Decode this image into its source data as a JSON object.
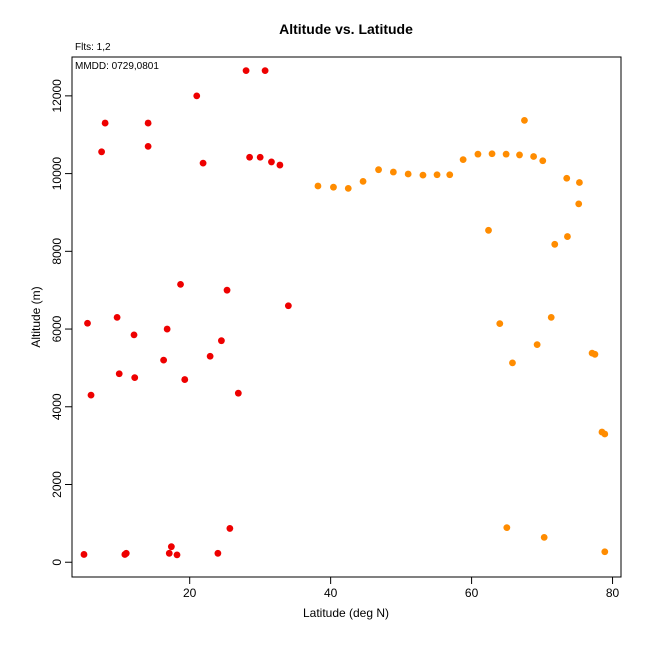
{
  "chart_data": {
    "type": "scatter",
    "title": "Altitude vs. Latitude",
    "xlabel": "Latitude (deg N)",
    "ylabel": "Altitude (m)",
    "xlim": [
      3.3,
      81.2
    ],
    "ylim": [
      -380,
      13000
    ],
    "x_ticks": [
      20,
      40,
      60,
      80
    ],
    "y_ticks": [
      0,
      2000,
      4000,
      6000,
      8000,
      10000,
      12000
    ],
    "grid": false,
    "flights_note": "Flts: 1,2",
    "mmdd_note": "MMDD: 0729,0801",
    "series": [
      {
        "color": "#ee0000",
        "points": [
          [
            5.0,
            200
          ],
          [
            5.5,
            6150
          ],
          [
            6.0,
            4300
          ],
          [
            7.5,
            10560
          ],
          [
            8.0,
            11300
          ],
          [
            9.7,
            6300
          ],
          [
            10.0,
            4850
          ],
          [
            10.8,
            200
          ],
          [
            11.0,
            230
          ],
          [
            12.1,
            5850
          ],
          [
            12.2,
            4750
          ],
          [
            14.1,
            11300
          ],
          [
            14.1,
            10700
          ],
          [
            16.3,
            5200
          ],
          [
            16.8,
            6000
          ],
          [
            17.1,
            230
          ],
          [
            17.4,
            400
          ],
          [
            18.2,
            190
          ],
          [
            18.7,
            7150
          ],
          [
            19.3,
            4700
          ],
          [
            21.0,
            12000
          ],
          [
            21.9,
            10270
          ],
          [
            22.9,
            5300
          ],
          [
            24.0,
            230
          ],
          [
            24.5,
            5700
          ],
          [
            25.3,
            7000
          ],
          [
            25.7,
            870
          ],
          [
            26.9,
            4350
          ],
          [
            28.0,
            12650
          ],
          [
            28.5,
            10420
          ],
          [
            30.0,
            10420
          ],
          [
            30.7,
            12650
          ],
          [
            31.6,
            10300
          ],
          [
            32.8,
            10220
          ],
          [
            34.0,
            6600
          ]
        ]
      },
      {
        "color": "#ff8c00",
        "points": [
          [
            38.2,
            9680
          ],
          [
            40.4,
            9650
          ],
          [
            42.5,
            9620
          ],
          [
            44.6,
            9800
          ],
          [
            46.8,
            10100
          ],
          [
            48.9,
            10040
          ],
          [
            51.0,
            9990
          ],
          [
            53.1,
            9960
          ],
          [
            55.1,
            9970
          ],
          [
            56.9,
            9970
          ],
          [
            58.8,
            10360
          ],
          [
            60.9,
            10500
          ],
          [
            62.4,
            8540
          ],
          [
            62.9,
            10510
          ],
          [
            64.0,
            6140
          ],
          [
            64.9,
            10500
          ],
          [
            65.0,
            890
          ],
          [
            65.8,
            5130
          ],
          [
            66.8,
            10480
          ],
          [
            67.5,
            11370
          ],
          [
            68.8,
            10440
          ],
          [
            69.3,
            5600
          ],
          [
            70.1,
            10330
          ],
          [
            70.3,
            640
          ],
          [
            71.3,
            6300
          ],
          [
            71.8,
            8180
          ],
          [
            73.5,
            9880
          ],
          [
            73.6,
            8380
          ],
          [
            75.2,
            9220
          ],
          [
            75.3,
            9770
          ],
          [
            77.1,
            5380
          ],
          [
            77.5,
            5350
          ],
          [
            78.5,
            3350
          ],
          [
            78.9,
            3300
          ],
          [
            78.9,
            270
          ]
        ]
      }
    ]
  }
}
